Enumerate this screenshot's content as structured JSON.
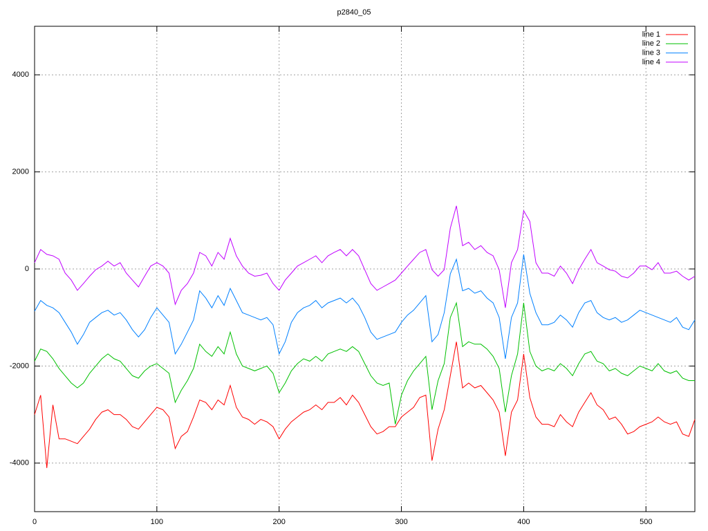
{
  "chart_data": {
    "type": "line",
    "title": "p2840_05",
    "x": [
      0,
      5,
      10,
      15,
      20,
      25,
      30,
      35,
      40,
      45,
      50,
      55,
      60,
      65,
      70,
      75,
      80,
      85,
      90,
      95,
      100,
      105,
      110,
      115,
      120,
      125,
      130,
      135,
      140,
      145,
      150,
      155,
      160,
      165,
      170,
      175,
      180,
      185,
      190,
      195,
      200,
      205,
      210,
      215,
      220,
      225,
      230,
      235,
      240,
      245,
      250,
      255,
      260,
      265,
      270,
      275,
      280,
      285,
      290,
      295,
      300,
      305,
      310,
      315,
      320,
      325,
      330,
      335,
      340,
      345,
      350,
      355,
      360,
      365,
      370,
      375,
      380,
      385,
      390,
      395,
      400,
      405,
      410,
      415,
      420,
      425,
      430,
      435,
      440,
      445,
      450,
      455,
      460,
      465,
      470,
      475,
      480,
      485,
      490,
      495,
      500,
      505,
      510,
      515,
      520,
      525,
      530,
      535,
      540
    ],
    "series": [
      {
        "name": "line 1",
        "color": "#ff0000",
        "values": [
          -3000,
          -2600,
          -4100,
          -2800,
          -3500,
          -3500,
          -3550,
          -3600,
          -3450,
          -3300,
          -3100,
          -2950,
          -2900,
          -3000,
          -3000,
          -3100,
          -3250,
          -3300,
          -3150,
          -3000,
          -2850,
          -2900,
          -3050,
          -3700,
          -3450,
          -3350,
          -3050,
          -2700,
          -2750,
          -2900,
          -2700,
          -2800,
          -2400,
          -2850,
          -3050,
          -3100,
          -3200,
          -3100,
          -3150,
          -3250,
          -3500,
          -3300,
          -3150,
          -3050,
          -2950,
          -2900,
          -2800,
          -2900,
          -2750,
          -2750,
          -2650,
          -2800,
          -2600,
          -2750,
          -3000,
          -3250,
          -3400,
          -3350,
          -3250,
          -3250,
          -3050,
          -2950,
          -2850,
          -2650,
          -2600,
          -3950,
          -3300,
          -2900,
          -2200,
          -1500,
          -2450,
          -2350,
          -2450,
          -2400,
          -2550,
          -2700,
          -2950,
          -3850,
          -2950,
          -2700,
          -1750,
          -2650,
          -3050,
          -3200,
          -3200,
          -3250,
          -3000,
          -3150,
          -3250,
          -2950,
          -2750,
          -2550,
          -2800,
          -2900,
          -3100,
          -3050,
          -3200,
          -3400,
          -3350,
          -3250,
          -3200,
          -3150,
          -3050,
          -3150,
          -3200,
          -3150,
          -3400,
          -3450,
          -3100
        ]
      },
      {
        "name": "line 2",
        "color": "#00c000",
        "values": [
          -1900,
          -1650,
          -1700,
          -1850,
          -2050,
          -2200,
          -2350,
          -2450,
          -2350,
          -2150,
          -2000,
          -1850,
          -1750,
          -1850,
          -1900,
          -2050,
          -2200,
          -2250,
          -2100,
          -2000,
          -1950,
          -2050,
          -2150,
          -2750,
          -2500,
          -2300,
          -2050,
          -1550,
          -1700,
          -1800,
          -1600,
          -1750,
          -1300,
          -1750,
          -2000,
          -2050,
          -2100,
          -2050,
          -2000,
          -2150,
          -2550,
          -2350,
          -2100,
          -1950,
          -1850,
          -1900,
          -1800,
          -1900,
          -1750,
          -1700,
          -1650,
          -1700,
          -1600,
          -1700,
          -1950,
          -2200,
          -2350,
          -2400,
          -2350,
          -3200,
          -2600,
          -2300,
          -2100,
          -1950,
          -1800,
          -2900,
          -2300,
          -1950,
          -1000,
          -700,
          -1600,
          -1500,
          -1550,
          -1550,
          -1650,
          -1800,
          -2050,
          -2950,
          -2200,
          -1750,
          -700,
          -1700,
          -2000,
          -2100,
          -2050,
          -2100,
          -1950,
          -2050,
          -2200,
          -1950,
          -1750,
          -1700,
          -1900,
          -1950,
          -2100,
          -2050,
          -2150,
          -2200,
          -2100,
          -2000,
          -2050,
          -2100,
          -1950,
          -2100,
          -2150,
          -2100,
          -2250,
          -2300,
          -2300
        ]
      },
      {
        "name": "line 3",
        "color": "#0080ff",
        "values": [
          -870,
          -650,
          -750,
          -800,
          -900,
          -1100,
          -1300,
          -1550,
          -1350,
          -1100,
          -1000,
          -900,
          -850,
          -950,
          -900,
          -1050,
          -1250,
          -1400,
          -1250,
          -1000,
          -800,
          -950,
          -1100,
          -1750,
          -1550,
          -1300,
          -1050,
          -450,
          -600,
          -800,
          -550,
          -750,
          -400,
          -650,
          -900,
          -950,
          -1000,
          -1050,
          -1000,
          -1150,
          -1750,
          -1500,
          -1100,
          -900,
          -800,
          -750,
          -650,
          -800,
          -700,
          -650,
          -600,
          -700,
          -600,
          -750,
          -1000,
          -1300,
          -1450,
          -1400,
          -1350,
          -1300,
          -1100,
          -950,
          -850,
          -700,
          -550,
          -1500,
          -1350,
          -900,
          -100,
          200,
          -450,
          -400,
          -500,
          -450,
          -600,
          -700,
          -1000,
          -1850,
          -1000,
          -700,
          300,
          -500,
          -900,
          -1150,
          -1150,
          -1100,
          -950,
          -1050,
          -1200,
          -900,
          -700,
          -650,
          -900,
          -1000,
          -1050,
          -1000,
          -1100,
          -1050,
          -950,
          -850,
          -900,
          -950,
          -1000,
          -1050,
          -1100,
          -1000,
          -1200,
          -1250,
          -1050
        ]
      },
      {
        "name": "line 4",
        "color": "#c000ff",
        "values": [
          130,
          400,
          300,
          270,
          200,
          -85,
          -230,
          -440,
          -300,
          -150,
          -15,
          60,
          160,
          60,
          130,
          -85,
          -230,
          -370,
          -150,
          60,
          130,
          60,
          -85,
          -730,
          -440,
          -300,
          -85,
          340,
          270,
          60,
          340,
          200,
          630,
          270,
          60,
          -85,
          -150,
          -130,
          -85,
          -300,
          -440,
          -230,
          -85,
          60,
          130,
          200,
          270,
          130,
          270,
          340,
          400,
          270,
          400,
          270,
          -15,
          -300,
          -440,
          -370,
          -300,
          -230,
          -85,
          60,
          200,
          340,
          400,
          -15,
          -150,
          -15,
          840,
          1300,
          480,
          550,
          400,
          480,
          340,
          270,
          -15,
          -800,
          130,
          400,
          1200,
          980,
          130,
          -85,
          -85,
          -150,
          60,
          -85,
          -300,
          -15,
          200,
          400,
          130,
          60,
          -15,
          -45,
          -150,
          -185,
          -85,
          60,
          60,
          -15,
          130,
          -85,
          -85,
          -45,
          -150,
          -230,
          -150
        ]
      }
    ],
    "xlim": [
      0,
      540
    ],
    "ylim": [
      -5000,
      5000
    ],
    "xticks": [
      0,
      100,
      200,
      300,
      400,
      500
    ],
    "yticks": [
      -4000,
      -2000,
      0,
      2000,
      4000
    ],
    "grid": true,
    "legend": "upper right"
  }
}
